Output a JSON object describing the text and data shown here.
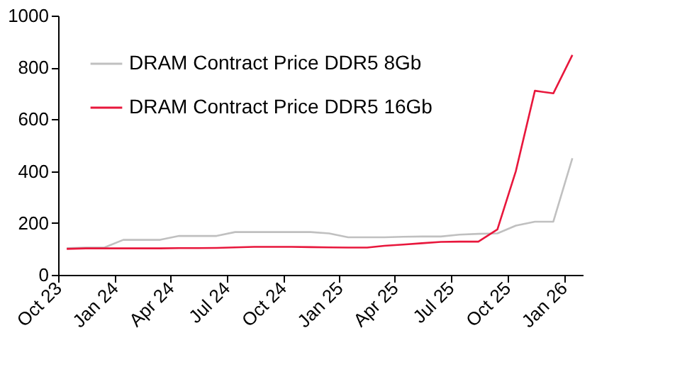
{
  "chart_data": {
    "type": "line",
    "x": [
      "2023-10-15",
      "2023-11-15",
      "2023-12-15",
      "2024-01-15",
      "2024-02-15",
      "2024-03-15",
      "2024-04-15",
      "2024-05-15",
      "2024-06-15",
      "2024-07-15",
      "2024-08-15",
      "2024-09-15",
      "2024-10-15",
      "2024-11-15",
      "2024-12-15",
      "2025-01-15",
      "2025-02-15",
      "2025-03-15",
      "2025-04-15",
      "2025-05-15",
      "2025-06-15",
      "2025-07-15",
      "2025-08-15",
      "2025-09-15",
      "2025-10-15",
      "2025-11-15",
      "2025-12-15",
      "2026-01-15"
    ],
    "series": [
      {
        "name": "DRAM Contract Price DDR5 8Gb",
        "color": "#c0c0c0",
        "values": [
          103,
          105,
          105,
          135,
          135,
          135,
          150,
          150,
          150,
          165,
          165,
          165,
          165,
          165,
          160,
          145,
          145,
          145,
          147,
          148,
          148,
          155,
          158,
          160,
          190,
          205,
          205,
          450
        ]
      },
      {
        "name": "DRAM Contract Price DDR5 16Gb",
        "color": "#e8173c",
        "values": [
          100,
          102,
          102,
          102,
          102,
          102,
          103,
          103,
          104,
          106,
          108,
          108,
          108,
          107,
          106,
          105,
          105,
          112,
          117,
          122,
          127,
          128,
          128,
          175,
          400,
          710,
          700,
          848
        ]
      }
    ],
    "xlim": [
      "2023-10-01",
      "2026-02-01"
    ],
    "xticks": [
      {
        "value": "2023-10-01",
        "label": "Oct 23"
      },
      {
        "value": "2024-01-01",
        "label": "Jan 24"
      },
      {
        "value": "2024-04-01",
        "label": "Apr 24"
      },
      {
        "value": "2024-07-01",
        "label": "Jul 24"
      },
      {
        "value": "2024-10-01",
        "label": "Oct 24"
      },
      {
        "value": "2025-01-01",
        "label": "Jan 25"
      },
      {
        "value": "2025-04-01",
        "label": "Apr 25"
      },
      {
        "value": "2025-07-01",
        "label": "Jul 25"
      },
      {
        "value": "2025-10-01",
        "label": "Oct 25"
      },
      {
        "value": "2026-01-01",
        "label": "Jan 26"
      }
    ],
    "ylim": [
      0,
      1000
    ],
    "yticks": [
      0,
      200,
      400,
      600,
      800,
      1000
    ],
    "grid": false,
    "legend": "top left",
    "marker": "none",
    "line_style": "solid"
  }
}
